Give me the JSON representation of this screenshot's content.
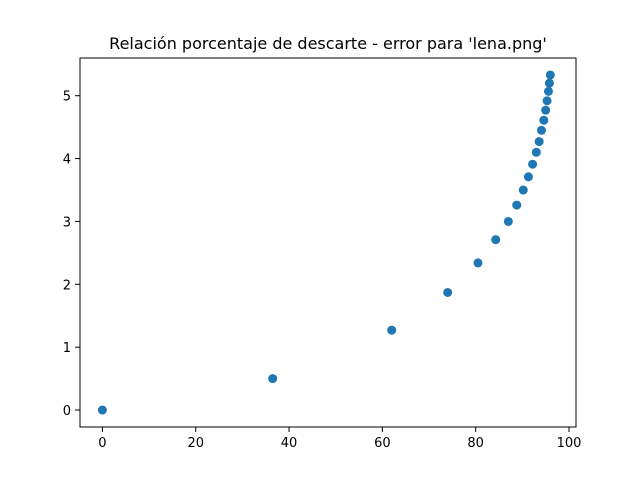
{
  "chart_data": {
    "type": "scatter",
    "title": "Relación porcentaje de descarte - error para 'lena.png'",
    "xlabel": "",
    "ylabel": "",
    "xlim": [
      -4.8,
      101.5
    ],
    "ylim": [
      -0.27,
      5.6
    ],
    "x_ticks": [
      0,
      20,
      40,
      60,
      80,
      100
    ],
    "y_ticks": [
      0,
      1,
      2,
      3,
      4,
      5
    ],
    "grid": false,
    "legend": "none",
    "marker_color": "#1f77b4",
    "points": [
      {
        "x": 0,
        "y": 0
      },
      {
        "x": 36.5,
        "y": 0.5
      },
      {
        "x": 62,
        "y": 1.27
      },
      {
        "x": 74,
        "y": 1.87
      },
      {
        "x": 80.5,
        "y": 2.34
      },
      {
        "x": 84.3,
        "y": 2.71
      },
      {
        "x": 87,
        "y": 3.0
      },
      {
        "x": 88.8,
        "y": 3.26
      },
      {
        "x": 90.2,
        "y": 3.5
      },
      {
        "x": 91.3,
        "y": 3.71
      },
      {
        "x": 92.2,
        "y": 3.91
      },
      {
        "x": 93.0,
        "y": 4.1
      },
      {
        "x": 93.6,
        "y": 4.27
      },
      {
        "x": 94.1,
        "y": 4.45
      },
      {
        "x": 94.6,
        "y": 4.61
      },
      {
        "x": 95.0,
        "y": 4.77
      },
      {
        "x": 95.3,
        "y": 4.92
      },
      {
        "x": 95.6,
        "y": 5.07
      },
      {
        "x": 95.8,
        "y": 5.2
      },
      {
        "x": 96.0,
        "y": 5.33
      }
    ]
  }
}
